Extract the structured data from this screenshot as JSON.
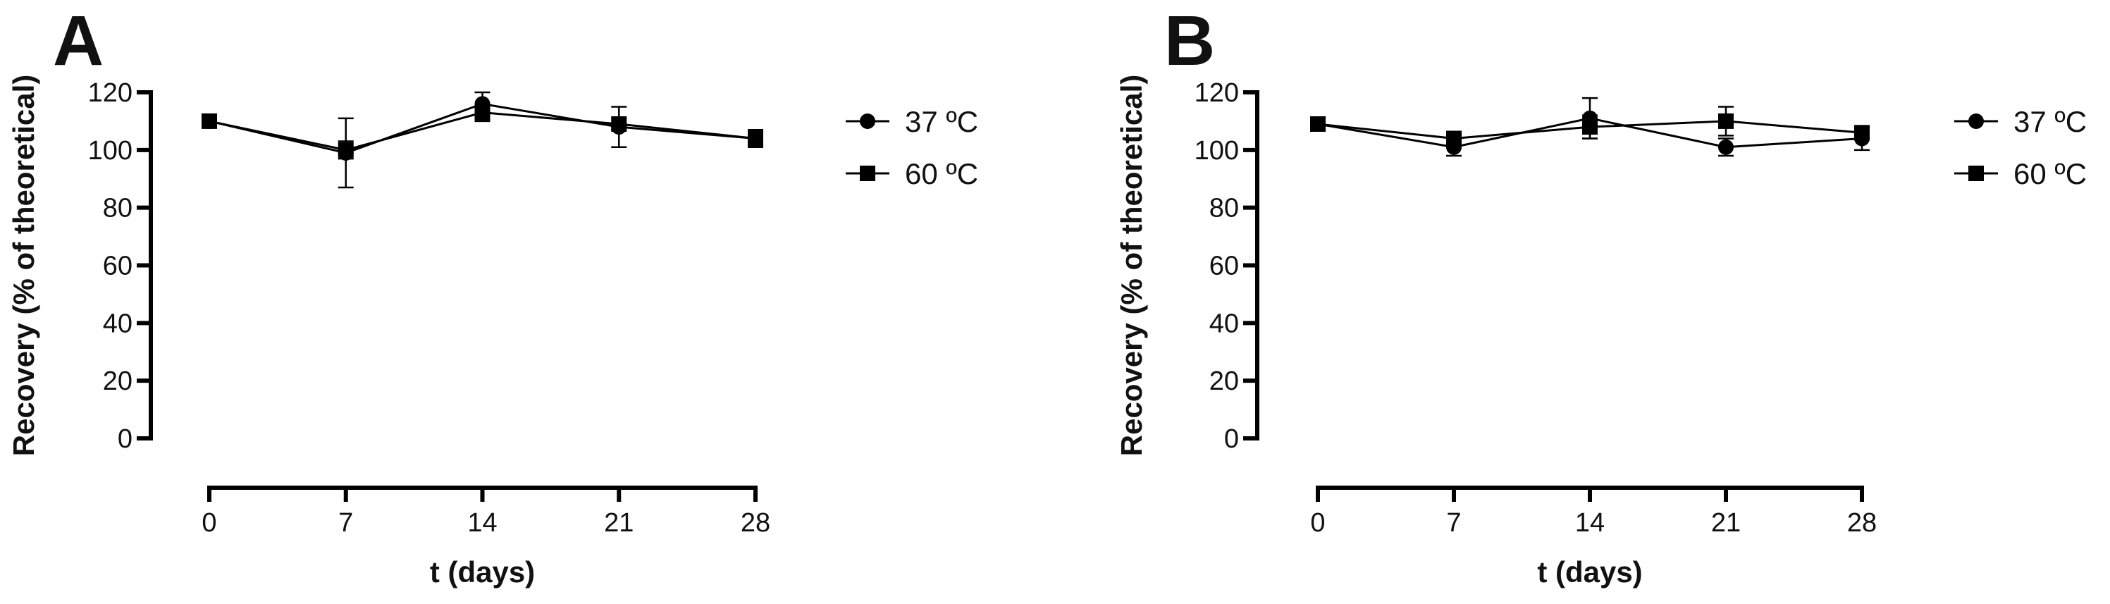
{
  "chart_data": [
    {
      "panel": "A",
      "type": "line",
      "xlabel": "t (days)",
      "ylabel": "Recovery (% of theoretical)",
      "x": [
        0,
        7,
        14,
        21,
        28
      ],
      "x_ticks": [
        "0",
        "7",
        "14",
        "21",
        "28"
      ],
      "xlim": [
        0,
        28
      ],
      "y_ticks": [
        "0",
        "20",
        "40",
        "60",
        "80",
        "100",
        "120"
      ],
      "ylim": [
        0,
        120
      ],
      "grid": false,
      "legend_position": "right",
      "series": [
        {
          "name": "37 ºC",
          "marker": "circle",
          "values": [
            110,
            99,
            116,
            108,
            104
          ],
          "errors": [
            2,
            12,
            4,
            7,
            3
          ]
        },
        {
          "name": "60 ºC",
          "marker": "square",
          "values": [
            110,
            100,
            113,
            109,
            104
          ],
          "errors": [
            2,
            3,
            3,
            2,
            2
          ]
        }
      ]
    },
    {
      "panel": "B",
      "type": "line",
      "xlabel": "t (days)",
      "ylabel": "Recovery (% of theoretical)",
      "x": [
        0,
        7,
        14,
        21,
        28
      ],
      "x_ticks": [
        "0",
        "7",
        "14",
        "21",
        "28"
      ],
      "xlim": [
        0,
        28
      ],
      "y_ticks": [
        "0",
        "20",
        "40",
        "60",
        "80",
        "100",
        "120"
      ],
      "ylim": [
        0,
        120
      ],
      "grid": false,
      "legend_position": "right",
      "series": [
        {
          "name": "37 ºC",
          "marker": "circle",
          "values": [
            109,
            101,
            111,
            101,
            104
          ],
          "errors": [
            2,
            3,
            7,
            3,
            4
          ]
        },
        {
          "name": "60 ºC",
          "marker": "square",
          "values": [
            109,
            104,
            108,
            110,
            106
          ],
          "errors": [
            2,
            2,
            4,
            5,
            2
          ]
        }
      ]
    }
  ]
}
